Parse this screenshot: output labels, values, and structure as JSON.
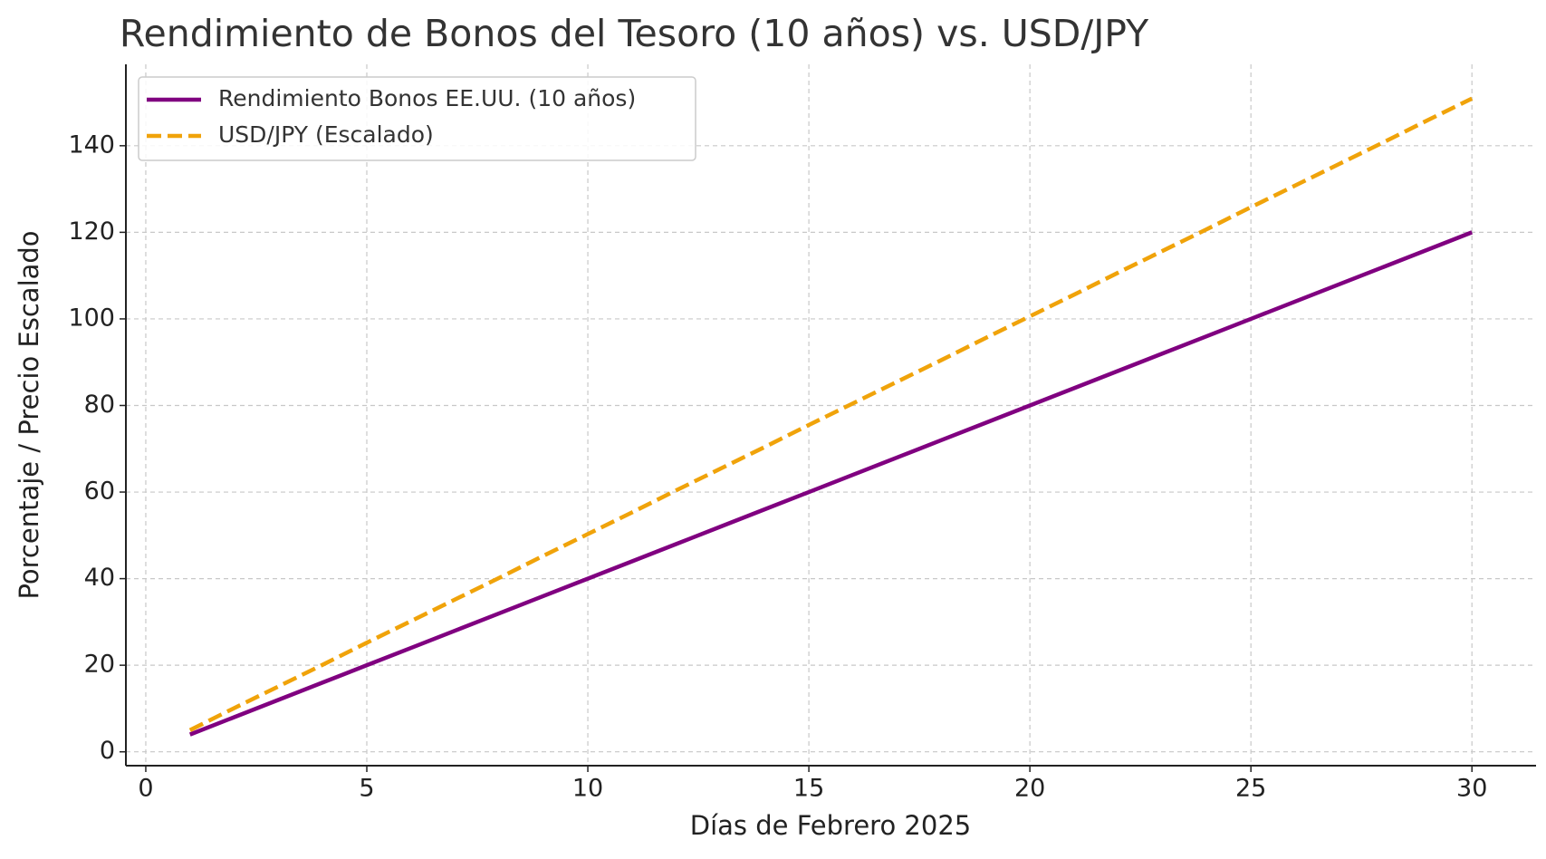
{
  "chart_data": {
    "type": "line",
    "title": "Rendimiento de Bonos del Tesoro (10 años) vs. USD/JPY",
    "x_label": "Días de Febrero 2025",
    "y_label": "Porcentaje / Precio Escalado",
    "x": [
      1,
      2,
      3,
      4,
      5,
      6,
      7,
      8,
      9,
      10,
      11,
      12,
      13,
      14,
      15,
      16,
      17,
      18,
      19,
      20,
      21,
      22,
      23,
      24,
      25,
      26,
      27,
      28,
      29,
      30
    ],
    "series": [
      {
        "name": "Rendimiento Bonos EE.UU. (10 años)",
        "color": "#800080",
        "dash": false,
        "values": [
          4,
          8,
          12,
          16,
          20,
          24,
          28,
          32,
          36,
          40,
          44,
          48,
          52,
          56,
          60,
          64,
          68,
          72,
          76,
          80,
          84,
          88,
          92,
          96,
          100,
          104,
          108,
          112,
          116,
          120
        ]
      },
      {
        "name": "USD/JPY (Escalado)",
        "color": "#f0a30a",
        "dash": true,
        "values": [
          5.0,
          10.1,
          15.1,
          20.1,
          25.2,
          30.2,
          35.2,
          40.2,
          45.3,
          50.3,
          55.3,
          60.4,
          65.4,
          70.4,
          75.5,
          80.5,
          85.5,
          90.5,
          95.6,
          100.6,
          105.6,
          110.7,
          115.7,
          120.7,
          125.8,
          130.8,
          135.8,
          140.8,
          145.9,
          150.9
        ]
      }
    ],
    "xlim": [
      -0.45,
      31.45
    ],
    "xticks": [
      0,
      5,
      10,
      15,
      20,
      25,
      30
    ],
    "ylim": [
      -3.2,
      158.8
    ],
    "yticks": [
      0,
      20,
      40,
      60,
      80,
      100,
      120,
      140
    ],
    "grid": true,
    "legend": "upper left"
  }
}
